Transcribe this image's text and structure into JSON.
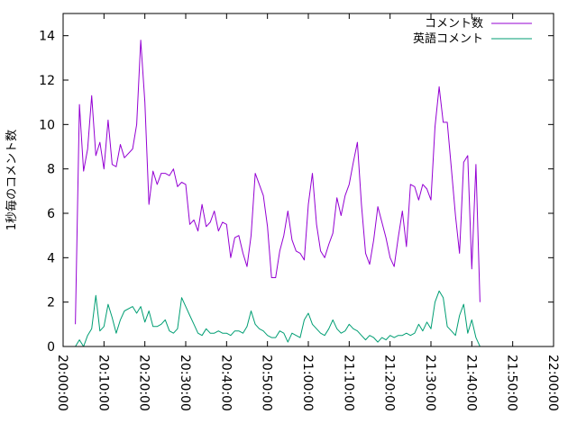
{
  "chart_data": {
    "type": "line",
    "title": "",
    "xlabel": "",
    "ylabel": "1秒毎のコメント数",
    "xlim": [
      "20:00:00",
      "22:00:00"
    ],
    "ylim": [
      0,
      15
    ],
    "x_ticks": [
      "20:00:00",
      "20:10:00",
      "20:20:00",
      "20:30:00",
      "20:40:00",
      "20:50:00",
      "21:00:00",
      "21:10:00",
      "21:20:00",
      "21:30:00",
      "21:40:00",
      "21:50:00",
      "22:00:00"
    ],
    "y_ticks": [
      "0",
      "2",
      "4",
      "6",
      "8",
      "10",
      "12",
      "14"
    ],
    "grid": false,
    "legend_position": "top-right",
    "series": [
      {
        "name": "コメント数",
        "color": "#9400d3",
        "points": [
          [
            "20:03:00",
            1.0
          ],
          [
            "20:04:00",
            10.9
          ],
          [
            "20:05:00",
            7.9
          ],
          [
            "20:06:00",
            8.9
          ],
          [
            "20:07:00",
            11.3
          ],
          [
            "20:08:00",
            8.6
          ],
          [
            "20:09:00",
            9.2
          ],
          [
            "20:10:00",
            8.0
          ],
          [
            "20:11:00",
            10.2
          ],
          [
            "20:12:00",
            8.2
          ],
          [
            "20:13:00",
            8.1
          ],
          [
            "20:14:00",
            9.1
          ],
          [
            "20:15:00",
            8.5
          ],
          [
            "20:17:00",
            8.9
          ],
          [
            "20:18:00",
            10.0
          ],
          [
            "20:19:00",
            13.8
          ],
          [
            "20:20:00",
            11.0
          ],
          [
            "20:21:00",
            6.4
          ],
          [
            "20:22:00",
            7.9
          ],
          [
            "20:23:00",
            7.3
          ],
          [
            "20:24:00",
            7.8
          ],
          [
            "20:25:00",
            7.8
          ],
          [
            "20:26:00",
            7.7
          ],
          [
            "20:27:00",
            8.0
          ],
          [
            "20:28:00",
            7.2
          ],
          [
            "20:29:00",
            7.4
          ],
          [
            "20:30:00",
            7.3
          ],
          [
            "20:31:00",
            5.5
          ],
          [
            "20:32:00",
            5.7
          ],
          [
            "20:33:00",
            5.2
          ],
          [
            "20:34:00",
            6.4
          ],
          [
            "20:35:00",
            5.4
          ],
          [
            "20:36:00",
            5.6
          ],
          [
            "20:37:00",
            6.1
          ],
          [
            "20:38:00",
            5.2
          ],
          [
            "20:39:00",
            5.6
          ],
          [
            "20:40:00",
            5.5
          ],
          [
            "20:41:00",
            4.0
          ],
          [
            "20:42:00",
            4.9
          ],
          [
            "20:43:00",
            5.0
          ],
          [
            "20:44:00",
            4.2
          ],
          [
            "20:45:00",
            3.6
          ],
          [
            "20:46:00",
            5.0
          ],
          [
            "20:47:00",
            7.8
          ],
          [
            "20:48:00",
            7.3
          ],
          [
            "20:49:00",
            6.8
          ],
          [
            "20:50:00",
            5.4
          ],
          [
            "20:51:00",
            3.1
          ],
          [
            "20:52:00",
            3.1
          ],
          [
            "20:53:00",
            4.3
          ],
          [
            "20:54:00",
            5.0
          ],
          [
            "20:55:00",
            6.1
          ],
          [
            "20:56:00",
            4.8
          ],
          [
            "20:57:00",
            4.3
          ],
          [
            "20:58:00",
            4.2
          ],
          [
            "20:59:00",
            3.9
          ],
          [
            "21:00:00",
            6.4
          ],
          [
            "21:01:00",
            7.8
          ],
          [
            "21:02:00",
            5.5
          ],
          [
            "21:03:00",
            4.3
          ],
          [
            "21:04:00",
            4.0
          ],
          [
            "21:05:00",
            4.6
          ],
          [
            "21:06:00",
            5.1
          ],
          [
            "21:07:00",
            6.7
          ],
          [
            "21:08:00",
            5.9
          ],
          [
            "21:09:00",
            6.8
          ],
          [
            "21:10:00",
            7.3
          ],
          [
            "21:11:00",
            8.3
          ],
          [
            "21:12:00",
            9.2
          ],
          [
            "21:13:00",
            6.4
          ],
          [
            "21:14:00",
            4.2
          ],
          [
            "21:15:00",
            3.7
          ],
          [
            "21:16:00",
            4.8
          ],
          [
            "21:17:00",
            6.3
          ],
          [
            "21:18:00",
            5.6
          ],
          [
            "21:19:00",
            4.9
          ],
          [
            "21:20:00",
            4.0
          ],
          [
            "21:21:00",
            3.6
          ],
          [
            "21:22:00",
            4.9
          ],
          [
            "21:23:00",
            6.1
          ],
          [
            "21:24:00",
            4.5
          ],
          [
            "21:25:00",
            7.3
          ],
          [
            "21:26:00",
            7.2
          ],
          [
            "21:27:00",
            6.6
          ],
          [
            "21:28:00",
            7.3
          ],
          [
            "21:29:00",
            7.1
          ],
          [
            "21:30:00",
            6.6
          ],
          [
            "21:31:00",
            9.9
          ],
          [
            "21:32:00",
            11.7
          ],
          [
            "21:33:00",
            10.1
          ],
          [
            "21:34:00",
            10.1
          ],
          [
            "21:35:00",
            8.0
          ],
          [
            "21:36:00",
            5.9
          ],
          [
            "21:37:00",
            4.2
          ],
          [
            "21:38:00",
            8.3
          ],
          [
            "21:39:00",
            8.6
          ],
          [
            "21:40:00",
            3.5
          ],
          [
            "21:41:00",
            8.2
          ],
          [
            "21:42:00",
            2.0
          ]
        ]
      },
      {
        "name": "英語コメント",
        "color": "#009e73",
        "points": [
          [
            "20:03:00",
            0.0
          ],
          [
            "20:04:00",
            0.3
          ],
          [
            "20:05:00",
            0.0
          ],
          [
            "20:06:00",
            0.5
          ],
          [
            "20:07:00",
            0.8
          ],
          [
            "20:08:00",
            2.3
          ],
          [
            "20:09:00",
            0.7
          ],
          [
            "20:10:00",
            0.9
          ],
          [
            "20:11:00",
            1.9
          ],
          [
            "20:12:00",
            1.3
          ],
          [
            "20:13:00",
            0.6
          ],
          [
            "20:14:00",
            1.2
          ],
          [
            "20:15:00",
            1.6
          ],
          [
            "20:17:00",
            1.8
          ],
          [
            "20:18:00",
            1.5
          ],
          [
            "20:19:00",
            1.8
          ],
          [
            "20:20:00",
            1.1
          ],
          [
            "20:21:00",
            1.6
          ],
          [
            "20:22:00",
            0.9
          ],
          [
            "20:23:00",
            0.9
          ],
          [
            "20:24:00",
            1.0
          ],
          [
            "20:25:00",
            1.2
          ],
          [
            "20:26:00",
            0.7
          ],
          [
            "20:27:00",
            0.6
          ],
          [
            "20:28:00",
            0.8
          ],
          [
            "20:29:00",
            2.2
          ],
          [
            "20:30:00",
            1.8
          ],
          [
            "20:31:00",
            1.4
          ],
          [
            "20:32:00",
            1.0
          ],
          [
            "20:33:00",
            0.6
          ],
          [
            "20:34:00",
            0.5
          ],
          [
            "20:35:00",
            0.8
          ],
          [
            "20:36:00",
            0.6
          ],
          [
            "20:37:00",
            0.6
          ],
          [
            "20:38:00",
            0.7
          ],
          [
            "20:39:00",
            0.6
          ],
          [
            "20:40:00",
            0.6
          ],
          [
            "20:41:00",
            0.5
          ],
          [
            "20:42:00",
            0.7
          ],
          [
            "20:43:00",
            0.7
          ],
          [
            "20:44:00",
            0.6
          ],
          [
            "20:45:00",
            0.9
          ],
          [
            "20:46:00",
            1.6
          ],
          [
            "20:47:00",
            1.0
          ],
          [
            "20:48:00",
            0.8
          ],
          [
            "20:49:00",
            0.7
          ],
          [
            "20:50:00",
            0.5
          ],
          [
            "20:51:00",
            0.4
          ],
          [
            "20:52:00",
            0.4
          ],
          [
            "20:53:00",
            0.7
          ],
          [
            "20:54:00",
            0.6
          ],
          [
            "20:55:00",
            0.2
          ],
          [
            "20:56:00",
            0.6
          ],
          [
            "20:57:00",
            0.5
          ],
          [
            "20:58:00",
            0.4
          ],
          [
            "20:59:00",
            1.2
          ],
          [
            "21:00:00",
            1.5
          ],
          [
            "21:01:00",
            1.0
          ],
          [
            "21:02:00",
            0.8
          ],
          [
            "21:03:00",
            0.6
          ],
          [
            "21:04:00",
            0.5
          ],
          [
            "21:05:00",
            0.8
          ],
          [
            "21:06:00",
            1.2
          ],
          [
            "21:07:00",
            0.8
          ],
          [
            "21:08:00",
            0.6
          ],
          [
            "21:09:00",
            0.7
          ],
          [
            "21:10:00",
            1.0
          ],
          [
            "21:11:00",
            0.8
          ],
          [
            "21:12:00",
            0.7
          ],
          [
            "21:13:00",
            0.5
          ],
          [
            "21:14:00",
            0.3
          ],
          [
            "21:15:00",
            0.5
          ],
          [
            "21:16:00",
            0.4
          ],
          [
            "21:17:00",
            0.2
          ],
          [
            "21:18:00",
            0.4
          ],
          [
            "21:19:00",
            0.3
          ],
          [
            "21:20:00",
            0.5
          ],
          [
            "21:21:00",
            0.4
          ],
          [
            "21:22:00",
            0.5
          ],
          [
            "21:23:00",
            0.5
          ],
          [
            "21:24:00",
            0.6
          ],
          [
            "21:25:00",
            0.5
          ],
          [
            "21:26:00",
            0.6
          ],
          [
            "21:27:00",
            1.0
          ],
          [
            "21:28:00",
            0.7
          ],
          [
            "21:29:00",
            1.1
          ],
          [
            "21:30:00",
            0.8
          ],
          [
            "21:31:00",
            2.0
          ],
          [
            "21:32:00",
            2.5
          ],
          [
            "21:33:00",
            2.2
          ],
          [
            "21:34:00",
            0.9
          ],
          [
            "21:35:00",
            0.7
          ],
          [
            "21:36:00",
            0.5
          ],
          [
            "21:37:00",
            1.4
          ],
          [
            "21:38:00",
            1.9
          ],
          [
            "21:39:00",
            0.6
          ],
          [
            "21:40:00",
            1.2
          ],
          [
            "21:41:00",
            0.4
          ],
          [
            "21:42:00",
            0.0
          ]
        ]
      }
    ]
  }
}
